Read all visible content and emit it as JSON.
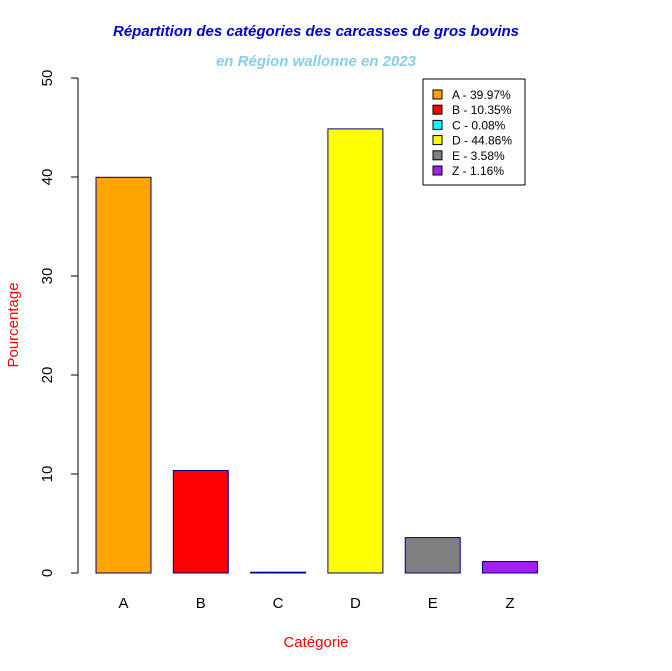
{
  "chart_data": {
    "type": "bar",
    "title": "Répartition des catégories des carcasses de gros bovins",
    "subtitle": "en Région wallonne en 2023",
    "xlabel": "Catégorie",
    "ylabel": "Pourcentage",
    "ylim": [
      0,
      50
    ],
    "yticks": [
      0,
      10,
      20,
      30,
      40,
      50
    ],
    "categories": [
      "A",
      "B",
      "C",
      "D",
      "E",
      "Z"
    ],
    "values": [
      39.97,
      10.35,
      0.08,
      44.86,
      3.58,
      1.16
    ],
    "colors": [
      "#FFA500",
      "#FF0000",
      "#00FFFF",
      "#FFFF00",
      "#808080",
      "#A020F0"
    ],
    "bar_border_color": "#00008B",
    "legend_placement": "top-right",
    "legend": [
      "A - 39.97%",
      "B - 10.35%",
      "C - 0.08%",
      "D - 44.86%",
      "E - 3.58%",
      "Z - 1.16%"
    ],
    "grid": false
  },
  "style": {
    "title_color": "#0000CD",
    "subtitle_color": "#87CEEB",
    "axis_label_color": "#FF0000"
  }
}
